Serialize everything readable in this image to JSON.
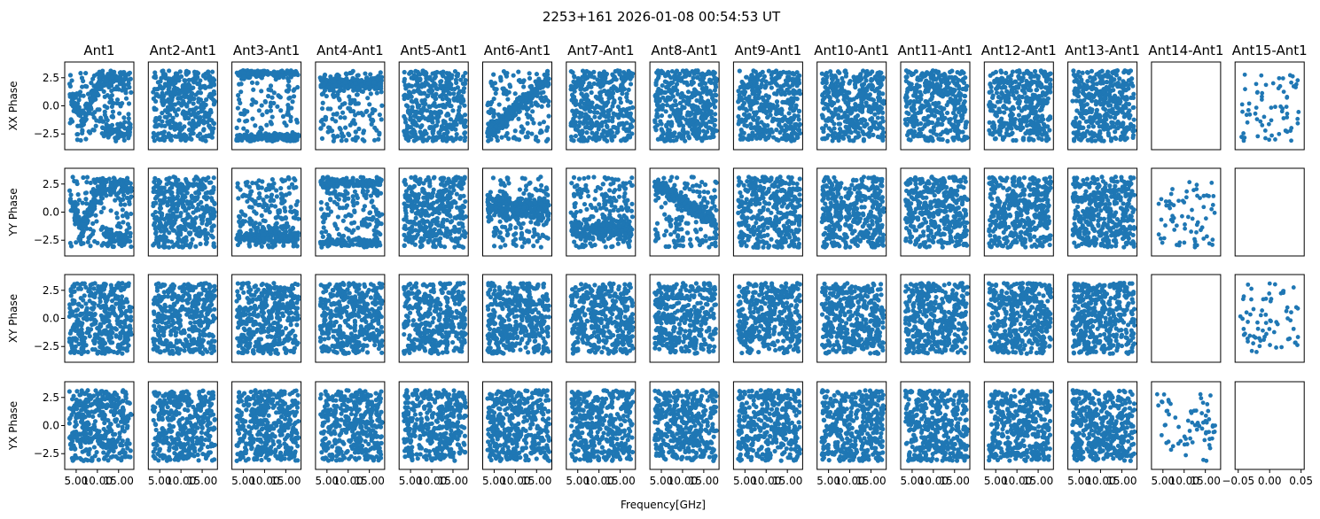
{
  "figure": {
    "title": "2253+161 2026-01-08 00:54:53 UT",
    "xlabel": "Frequency[GHz]"
  },
  "chart_data": {
    "type": "scatter",
    "title": "2253+161 2026-01-08 00:54:53 UT",
    "xlabel": "Frequency[GHz]",
    "columns": [
      "Ant1",
      "Ant2-Ant1",
      "Ant3-Ant1",
      "Ant4-Ant1",
      "Ant5-Ant1",
      "Ant6-Ant1",
      "Ant7-Ant1",
      "Ant8-Ant1",
      "Ant9-Ant1",
      "Ant10-Ant1",
      "Ant11-Ant1",
      "Ant12-Ant1",
      "Ant13-Ant1",
      "Ant14-Ant1",
      "Ant15-Ant1"
    ],
    "rows": [
      "XX Phase",
      "YY Phase",
      "XY Phase",
      "YX Phase"
    ],
    "ylim": [
      -3.9,
      3.9
    ],
    "yticks": [
      -2.5,
      0.0,
      2.5
    ],
    "ytick_labels": [
      "−2.5",
      "0.0",
      "2.5"
    ],
    "xlim": [
      2.3,
      18.6
    ],
    "xticks": [
      5.0,
      10.0,
      15.0
    ],
    "xtick_labels": [
      "5.00",
      "10.00",
      "15.00"
    ],
    "empty_xlim": [
      -0.055,
      0.055
    ],
    "empty_xticks": [
      -0.05,
      0.0,
      0.05
    ],
    "empty_xtick_labels": [
      "−0.05",
      "0.00",
      "0.05"
    ],
    "marker_color": "#1f77b4",
    "freq_range_ghz": [
      3.4,
      18.0
    ],
    "phase_range_rad": [
      -3.1416,
      3.1416
    ],
    "points_per_panel": 400,
    "sparse_points_per_panel": 70,
    "panels_without_data": [
      [
        0,
        13
      ],
      [
        1,
        14
      ],
      [
        2,
        13
      ],
      [
        3,
        14
      ]
    ],
    "sparse_panels": [
      [
        0,
        14
      ],
      [
        1,
        13
      ],
      [
        2,
        14
      ],
      [
        3,
        13
      ]
    ],
    "structured_panels": [
      {
        "row": 0,
        "col": 0,
        "pattern": "v-shaped phase ramp near 0 at low frequency"
      },
      {
        "row": 0,
        "col": 2,
        "pattern": "phase concentrated near +3.0 and -3.0"
      },
      {
        "row": 0,
        "col": 3,
        "pattern": "phase concentrated near +2.0"
      },
      {
        "row": 0,
        "col": 5,
        "pattern": "phase rising from -2.5 toward +3"
      },
      {
        "row": 1,
        "col": 0,
        "pattern": "v-shaped phase ramp near 0 at low frequency"
      },
      {
        "row": 1,
        "col": 5,
        "pattern": "phase concentrated near 0.5"
      },
      {
        "row": 1,
        "col": 6,
        "pattern": "phase concentrated near -1.5"
      },
      {
        "row": 1,
        "col": 7,
        "pattern": "phase wrapping between +3 and -3"
      }
    ]
  }
}
